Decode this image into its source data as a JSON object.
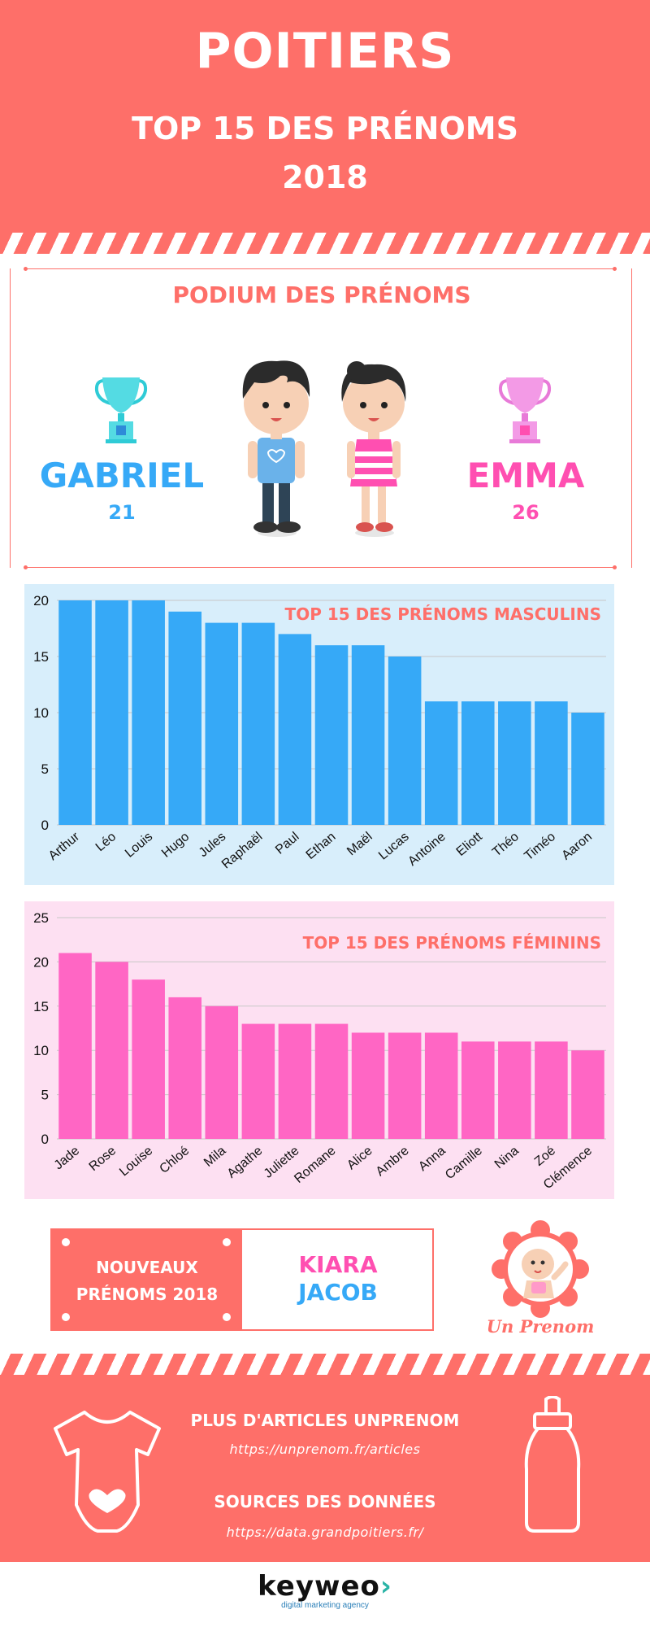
{
  "header": {
    "city": "POITIERS",
    "subtitle_line1": "TOP 15 DES PRÉNOMS",
    "subtitle_line2": "2018"
  },
  "podium": {
    "title": "PODIUM DES PRÉNOMS",
    "boy": {
      "name": "GABRIEL",
      "count": "21",
      "color": "#36a9f7"
    },
    "girl": {
      "name": "EMMA",
      "count": "26",
      "color": "#ff4fb1"
    },
    "icons": [
      "trophy-icon",
      "boy-icon",
      "girl-icon"
    ]
  },
  "chart_data": [
    {
      "type": "bar",
      "title": "TOP 15 DES PRÉNOMS MASCULINS",
      "categories": [
        "Arthur",
        "Léo",
        "Louis",
        "Hugo",
        "Jules",
        "Raphaël",
        "Paul",
        "Ethan",
        "Maël",
        "Lucas",
        "Antoine",
        "Eliott",
        "Théo",
        "Timéo",
        "Aaron"
      ],
      "values": [
        20,
        20,
        20,
        19,
        18,
        18,
        17,
        16,
        16,
        15,
        11,
        11,
        11,
        11,
        10
      ],
      "ylim": [
        0,
        20
      ],
      "yticks": [
        0,
        5,
        10,
        15,
        20
      ],
      "bar_color": "#36a9f7",
      "background": "#d8eefb",
      "grid": true,
      "xlabel": "",
      "ylabel": ""
    },
    {
      "type": "bar",
      "title": "TOP 15 DES PRÉNOMS FÉMININS",
      "categories": [
        "Jade",
        "Rose",
        "Louise",
        "Chloé",
        "Mila",
        "Agathe",
        "Juliette",
        "Romane",
        "Alice",
        "Ambre",
        "Anna",
        "Camille",
        "Nina",
        "Zoé",
        "Clémence"
      ],
      "values": [
        21,
        20,
        18,
        16,
        15,
        13,
        13,
        13,
        12,
        12,
        12,
        11,
        11,
        11,
        10
      ],
      "ylim": [
        0,
        25
      ],
      "yticks": [
        0,
        5,
        10,
        15,
        20,
        25
      ],
      "bar_color": "#ff66c4",
      "background": "#fde0f2",
      "grid": true,
      "xlabel": "",
      "ylabel": ""
    }
  ],
  "new_names": {
    "label_line1": "NOUVEAUX",
    "label_line2": "PRÉNOMS 2018",
    "girl_name": "KIARA",
    "boy_name": "JACOB"
  },
  "brand": {
    "name": "Un Prenom",
    "icon": "baby-icon"
  },
  "footer": {
    "articles_heading": "PLUS D'ARTICLES UNPRENOM",
    "articles_link": "https://unprenom.fr/articles",
    "sources_heading": "SOURCES DES DONNÉES",
    "sources_link": "https://data.grandpoitiers.fr/",
    "icons": [
      "onesie-icon",
      "baby-bottle-icon"
    ]
  },
  "keyweo": {
    "logo_text": "keyweo",
    "tagline": "digital marketing agency"
  }
}
